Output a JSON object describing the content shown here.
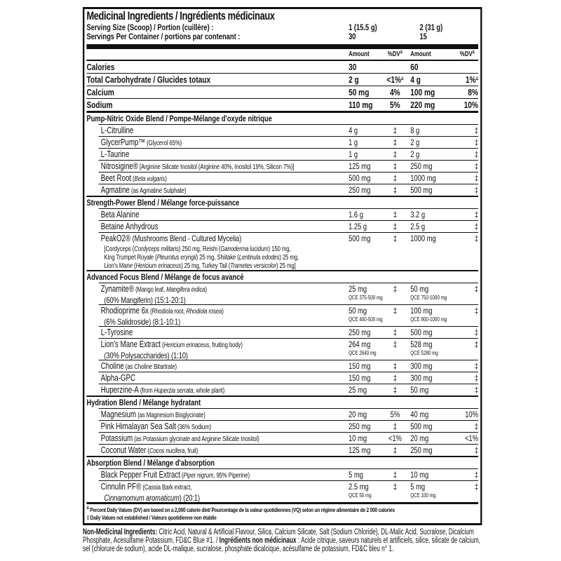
{
  "title": "Medicinal Ingredients / Ingrédients médicinaux",
  "serving": {
    "size_label": "Serving Size (Scoop)  / Portion (cuillère) :",
    "size_1": "1 (15.5 g)",
    "size_2": "2 (31 g)",
    "per_container_label": "Servings Per Container / portions par contenant :",
    "per_container_1": "30",
    "per_container_2": "15"
  },
  "columns": {
    "amount": "Amount",
    "dv": "%DV",
    "dv_mark": "Δ"
  },
  "nutrition": [
    {
      "name": "Calories",
      "amount_1": "30",
      "dv_1": "",
      "amount_2": "60",
      "dv_2": ""
    },
    {
      "name": "Total Carbohydrate / Glucides totaux",
      "amount_1": "2 g",
      "dv_1": "<1%",
      "mark_1": "Δ",
      "amount_2": "4 g",
      "dv_2": "1%",
      "mark_2": "Δ"
    },
    {
      "name": "Calcium",
      "amount_1": "50 mg",
      "dv_1": "4%",
      "amount_2": "100 mg",
      "dv_2": "8%"
    },
    {
      "name": "Sodium",
      "amount_1": "110 mg",
      "dv_1": "5%",
      "amount_2": "220 mg",
      "dv_2": "10%"
    }
  ],
  "sections": [
    {
      "title": "Pump-Nitric Oxide Blend / Pompe-Mélange d'oxyde nitrique",
      "items": [
        {
          "name": "L-Citrulline",
          "detail": [],
          "amount_1": "4 g",
          "dv_1": "‡",
          "amount_2": "8 g",
          "dv_2": "‡"
        },
        {
          "name": "GlycerPump™",
          "detail": [
            {
              "t": " (Glycerol 65%)"
            }
          ],
          "amount_1": "1 g",
          "dv_1": "‡",
          "amount_2": "2 g",
          "dv_2": "‡"
        },
        {
          "name": "L-Taurine",
          "detail": [],
          "amount_1": "1 g",
          "dv_1": "‡",
          "amount_2": "2 g",
          "dv_2": "‡"
        },
        {
          "name": "Nitrosigine®",
          "detail": [
            {
              "t": " [Arginine Silicate Inositol (Arginine 40%, Inositol 19%, Silicon 7%)]"
            }
          ],
          "amount_1": "125 mg",
          "dv_1": "‡",
          "amount_2": "250 mg",
          "dv_2": "‡"
        },
        {
          "name": "Beet Root",
          "detail": [
            {
              "t": " ("
            },
            {
              "t": "Beta vulgaris",
              "i": true
            },
            {
              "t": ")"
            }
          ],
          "amount_1": "500 mg",
          "dv_1": "‡",
          "amount_2": "1000 mg",
          "dv_2": "‡"
        },
        {
          "name": "Agmatine",
          "detail": [
            {
              "t": " (as Agmatine Sulphate)"
            }
          ],
          "amount_1": "250 mg",
          "dv_1": "‡",
          "amount_2": "500 mg",
          "dv_2": "‡"
        }
      ]
    },
    {
      "title": "Strength-Power Blend / Mélange force-puissance",
      "items": [
        {
          "name": "Beta Alanine",
          "detail": [],
          "amount_1": "1.6 g",
          "dv_1": "‡",
          "amount_2": "3.2 g",
          "dv_2": "‡"
        },
        {
          "name": "Betaine Anhydrous",
          "detail": [],
          "amount_1": "1.25 g",
          "dv_1": "‡",
          "amount_2": "2.5 g",
          "dv_2": "‡"
        },
        {
          "name": "PeakO2®",
          "detail": [
            {
              "t": " (Mushrooms Blend - Cultured Mycelia)",
              "big": true
            }
          ],
          "amount_1": "500 mg",
          "dv_1": "‡",
          "amount_2": "1000 mg",
          "dv_2": "‡",
          "cont": [
            [
              {
                "t": "[Cordyceps ("
              },
              {
                "t": "Cordyceps militaris",
                "i": true
              },
              {
                "t": ") 250 mg, Reishi ("
              },
              {
                "t": "Ganoderma lucidum",
                "i": true
              },
              {
                "t": ") 150 mg,"
              }
            ],
            [
              {
                "t": "King Trumpet Royale ("
              },
              {
                "t": "Pleurotus eryngii",
                "i": true
              },
              {
                "t": ") 25 mg, Shiitake ("
              },
              {
                "t": "Lentinula edodes",
                "i": true
              },
              {
                "t": ") 25 mg,"
              }
            ],
            [
              {
                "t": "Lion's Mane ("
              },
              {
                "t": "Hericium erinaceus",
                "i": true
              },
              {
                "t": ") 25 mg, Turkey Tail ("
              },
              {
                "t": "Trametes versicolor",
                "i": true
              },
              {
                "t": ") 25 mg]"
              }
            ]
          ]
        }
      ]
    },
    {
      "title": "Advanced Focus Blend / Mélange de focus avancé",
      "items": [
        {
          "name": "Zynamite®",
          "detail": [
            {
              "t": " (Mango leaf, "
            },
            {
              "t": "Mangifera indica",
              "i": true
            },
            {
              "t": ")"
            }
          ],
          "cont": [
            [
              {
                "t": "(60% Mangiferin) (15:1-20:1)",
                "big": true
              }
            ]
          ],
          "amount_1": "25 mg",
          "qce_1": "QCE 375-500 mg",
          "dv_1": "‡",
          "amount_2": "50 mg",
          "qce_2": "QCE 750-1000 mg",
          "dv_2": "‡"
        },
        {
          "name": "Rhodioprime 6x",
          "detail": [
            {
              "t": " (Rhodiola root, "
            },
            {
              "t": "Rhodiola rosea",
              "i": true
            },
            {
              "t": ")"
            }
          ],
          "cont": [
            [
              {
                "t": "(6% Salidroside) (8:1-10:1)",
                "big": true
              }
            ]
          ],
          "amount_1": "50 mg",
          "qce_1": "QCE 400-500 mg",
          "dv_1": "‡",
          "amount_2": "100 mg",
          "qce_2": "QCE 800-1000 mg",
          "dv_2": "‡"
        },
        {
          "name": "L-Tyrosine",
          "detail": [],
          "amount_1": "250 mg",
          "dv_1": "‡",
          "amount_2": "500 mg",
          "dv_2": "‡"
        },
        {
          "name": "Lion's Mane Extract",
          "detail": [
            {
              "t": " ("
            },
            {
              "t": "Hericium erinaceus",
              "i": true
            },
            {
              "t": ", fruiting body)"
            }
          ],
          "cont": [
            [
              {
                "t": "(30% Polysaccharides) (1:10)",
                "big": true
              }
            ]
          ],
          "amount_1": "264 mg",
          "qce_1": "QCE 2640 mg",
          "dv_1": "‡",
          "amount_2": "528 mg",
          "qce_2": "QCE 5280 mg",
          "dv_2": "‡"
        },
        {
          "name": "Choline",
          "detail": [
            {
              "t": " (as Choline Bitartrate)"
            }
          ],
          "amount_1": "150 mg",
          "dv_1": "‡",
          "amount_2": "300 mg",
          "dv_2": "‡"
        },
        {
          "name": "Alpha-GPC",
          "detail": [],
          "amount_1": "150 mg",
          "dv_1": "‡",
          "amount_2": "300 mg",
          "dv_2": "‡"
        },
        {
          "name": "Huperzine-A",
          "detail": [
            {
              "t": " (from "
            },
            {
              "t": "Huperzia serrata",
              "i": true
            },
            {
              "t": ", whole plant)"
            }
          ],
          "amount_1": "25 mg",
          "dv_1": "‡",
          "amount_2": "50 mg",
          "dv_2": "‡"
        }
      ]
    },
    {
      "title": "Hydration Blend / Mélange hydratant",
      "items": [
        {
          "name": "Magnesium",
          "detail": [
            {
              "t": " (as Magnesium Bisglycinate)"
            }
          ],
          "amount_1": "20 mg",
          "dv_1": "5%",
          "amount_2": "40 mg",
          "dv_2": "10%"
        },
        {
          "name": "Pink Himalayan Sea Salt",
          "detail": [
            {
              "t": " (36% Sodium)"
            }
          ],
          "amount_1": "250 mg",
          "dv_1": "‡",
          "amount_2": "500 mg",
          "dv_2": "‡"
        },
        {
          "name": "Potassium",
          "detail": [
            {
              "t": " (as Potassium glycinate and Arginine Silicate Inositol)"
            }
          ],
          "amount_1": "10 mg",
          "dv_1": "<1%",
          "amount_2": "20 mg",
          "dv_2": "<1%"
        },
        {
          "name": "Coconut Water",
          "detail": [
            {
              "t": " ("
            },
            {
              "t": "Cocos nucifera",
              "i": true
            },
            {
              "t": ", fruit)"
            }
          ],
          "amount_1": "125 mg",
          "dv_1": "‡",
          "amount_2": "250 mg",
          "dv_2": "‡"
        }
      ]
    },
    {
      "title": "Absorption Blend / Mélange d'absorption",
      "items": [
        {
          "name": "Black Pepper Fruit Extract",
          "detail": [
            {
              "t": " ("
            },
            {
              "t": "Piper nigrum",
              "i": true
            },
            {
              "t": ", 95% Piperine)"
            }
          ],
          "amount_1": "5 mg",
          "dv_1": "‡",
          "amount_2": "10 mg",
          "dv_2": "‡"
        },
        {
          "name": "Cinnulin PF®",
          "detail": [
            {
              "t": " (Cassia Bark extract,"
            }
          ],
          "cont": [
            [
              {
                "t": "Cinnamomum aromaticum",
                "i": true,
                "big": true
              },
              {
                "t": ") (20:1)",
                "big": true
              }
            ]
          ],
          "amount_1": "2.5 mg",
          "qce_1": "QCE 50 mg",
          "dv_1": "‡",
          "amount_2": "5 mg",
          "qce_2": "QCE 100 mg",
          "dv_2": "‡"
        }
      ]
    }
  ],
  "footnotes": [
    {
      "mark": "Δ",
      "text": "Percent Daily Values (DV) are based on a 2,000 calorie diet/ Pourcentage de la valeur quotidiennes (VQ) selon un régime alimentaire de 2 000 calories"
    },
    {
      "mark": "‡",
      "text": "Daily Values not established / Valeurs quotidienne non établie"
    }
  ],
  "non_medicinal": {
    "label_en": "Non-Medicinal Ingredients:",
    "text_en": " Citric Acid, Natural & Artificial Flavour, Silica, Calcium Silicate, Salt (Sodium Chloride), DL-Malic Acid, Sucralose, Dicalcium Phosphate, Acesulfame Potassium, FD&C Blue #1. / ",
    "label_fr": "Ingrédients non médicinaux",
    "text_fr": " : Acide citrique, saveurs naturels et artificiels, silice, silicate de calcium, sel (chlorure de sodium), acide DL-malique, sucralose, phosphate dicalcique, acésulfame de potassium, FD&C bleu n° 1."
  }
}
